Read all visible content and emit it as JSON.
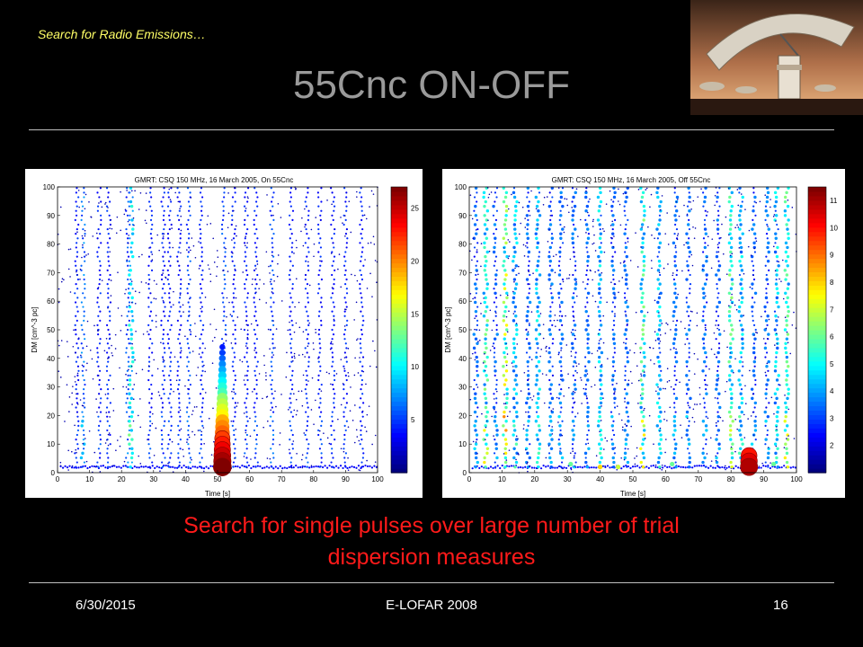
{
  "header": {
    "subtitle": "Search for Radio Emissions…",
    "title": "55Cnc ON-OFF"
  },
  "colors": {
    "background": "#000000",
    "title": "#9a9a9a",
    "subtitle": "#ffff66",
    "caption": "#ff1a1a",
    "rule": "#bfbfbf"
  },
  "photo": {
    "icon": "radio-telescope-dish-icon"
  },
  "caption": {
    "line1": "Search for single pulses over large number of trial",
    "line2": "dispersion measures"
  },
  "footer": {
    "date": "6/30/2015",
    "center": "E-LOFAR 2008",
    "page": "16"
  },
  "chart_data": [
    {
      "type": "scatter",
      "title": "GMRT: CSQ 150 MHz, 16 March 2005, On 55Cnc",
      "xlabel": "Time [s]",
      "ylabel": "DM [cm^-3 pc]",
      "xlim": [
        0,
        100
      ],
      "ylim": [
        0,
        100
      ],
      "xticks": [
        0,
        10,
        20,
        30,
        40,
        50,
        60,
        70,
        80,
        90,
        100
      ],
      "yticks": [
        0,
        10,
        20,
        30,
        40,
        50,
        60,
        70,
        80,
        90,
        100
      ],
      "colorbar": {
        "min": 0,
        "max": 27,
        "ticks": [
          5,
          10,
          15,
          20,
          25
        ]
      },
      "columns": [
        {
          "x": 6,
          "intensity": 4
        },
        {
          "x": 8,
          "intensity": 6
        },
        {
          "x": 13,
          "intensity": 4
        },
        {
          "x": 16,
          "intensity": 4
        },
        {
          "x": 22,
          "intensity": 5
        },
        {
          "x": 23,
          "intensity": 9
        },
        {
          "x": 29,
          "intensity": 4
        },
        {
          "x": 33,
          "intensity": 4
        },
        {
          "x": 35,
          "intensity": 4
        },
        {
          "x": 38,
          "intensity": 4
        },
        {
          "x": 41,
          "intensity": 5
        },
        {
          "x": 45,
          "intensity": 4
        },
        {
          "x": 52,
          "intensity": 5
        },
        {
          "x": 55,
          "intensity": 4
        },
        {
          "x": 59,
          "intensity": 4
        },
        {
          "x": 62,
          "intensity": 4
        },
        {
          "x": 67,
          "intensity": 5
        },
        {
          "x": 73,
          "intensity": 4
        },
        {
          "x": 78,
          "intensity": 4
        },
        {
          "x": 82,
          "intensity": 4
        },
        {
          "x": 86,
          "intensity": 4
        },
        {
          "x": 90,
          "intensity": 4
        },
        {
          "x": 95,
          "intensity": 4
        }
      ],
      "burst": {
        "x": 51.5,
        "points": [
          {
            "dm": 2,
            "intensity": 27
          },
          {
            "dm": 4,
            "intensity": 26
          },
          {
            "dm": 6,
            "intensity": 25
          },
          {
            "dm": 8,
            "intensity": 24
          },
          {
            "dm": 10,
            "intensity": 23
          },
          {
            "dm": 12,
            "intensity": 22
          },
          {
            "dm": 14,
            "intensity": 21
          },
          {
            "dm": 16,
            "intensity": 20
          },
          {
            "dm": 18,
            "intensity": 19
          },
          {
            "dm": 20,
            "intensity": 17
          },
          {
            "dm": 22,
            "intensity": 16
          },
          {
            "dm": 24,
            "intensity": 15
          },
          {
            "dm": 26,
            "intensity": 14
          },
          {
            "dm": 28,
            "intensity": 12
          },
          {
            "dm": 30,
            "intensity": 11
          },
          {
            "dm": 32,
            "intensity": 10
          },
          {
            "dm": 34,
            "intensity": 9
          },
          {
            "dm": 36,
            "intensity": 8
          },
          {
            "dm": 38,
            "intensity": 7
          },
          {
            "dm": 40,
            "intensity": 6
          },
          {
            "dm": 42,
            "intensity": 5
          },
          {
            "dm": 44,
            "intensity": 4
          }
        ]
      }
    },
    {
      "type": "scatter",
      "title": "GMRT: CSQ 150 MHz, 16 March 2005, Off 55Cnc",
      "xlabel": "Time [s]",
      "ylabel": "DM [cm^-3 pc]",
      "xlim": [
        0,
        100
      ],
      "ylim": [
        0,
        100
      ],
      "xticks": [
        0,
        10,
        20,
        30,
        40,
        50,
        60,
        70,
        80,
        90,
        100
      ],
      "yticks": [
        0,
        10,
        20,
        30,
        40,
        50,
        60,
        70,
        80,
        90,
        100
      ],
      "colorbar": {
        "min": 1,
        "max": 11.5,
        "ticks": [
          2,
          3,
          4,
          5,
          6,
          7,
          8,
          9,
          10,
          11
        ]
      },
      "columns": [
        {
          "x": 2,
          "intensity": 3
        },
        {
          "x": 5,
          "intensity": 5
        },
        {
          "x": 8,
          "intensity": 3
        },
        {
          "x": 11,
          "intensity": 6
        },
        {
          "x": 14,
          "intensity": 4
        },
        {
          "x": 18,
          "intensity": 3
        },
        {
          "x": 21,
          "intensity": 4
        },
        {
          "x": 25,
          "intensity": 3
        },
        {
          "x": 28,
          "intensity": 3
        },
        {
          "x": 32,
          "intensity": 3
        },
        {
          "x": 36,
          "intensity": 3
        },
        {
          "x": 40,
          "intensity": 4
        },
        {
          "x": 44,
          "intensity": 3
        },
        {
          "x": 48,
          "intensity": 3
        },
        {
          "x": 53,
          "intensity": 5
        },
        {
          "x": 58,
          "intensity": 4
        },
        {
          "x": 63,
          "intensity": 3
        },
        {
          "x": 67,
          "intensity": 3
        },
        {
          "x": 72,
          "intensity": 3
        },
        {
          "x": 76,
          "intensity": 3
        },
        {
          "x": 80,
          "intensity": 5
        },
        {
          "x": 83,
          "intensity": 4
        },
        {
          "x": 87,
          "intensity": 3
        },
        {
          "x": 91,
          "intensity": 3
        },
        {
          "x": 94,
          "intensity": 4
        },
        {
          "x": 97,
          "intensity": 5
        }
      ],
      "burst": {
        "x": 85.5,
        "points": [
          {
            "dm": 2,
            "intensity": 11
          },
          {
            "dm": 4,
            "intensity": 10.5
          },
          {
            "dm": 6,
            "intensity": 10
          }
        ]
      },
      "extra_points": [
        {
          "x": 40,
          "dm": 2,
          "intensity": 8
        },
        {
          "x": 45.5,
          "dm": 2,
          "intensity": 7
        },
        {
          "x": 31,
          "dm": 3,
          "intensity": 6
        },
        {
          "x": 62,
          "dm": 3,
          "intensity": 6
        },
        {
          "x": 93,
          "dm": 3,
          "intensity": 6
        }
      ]
    }
  ]
}
